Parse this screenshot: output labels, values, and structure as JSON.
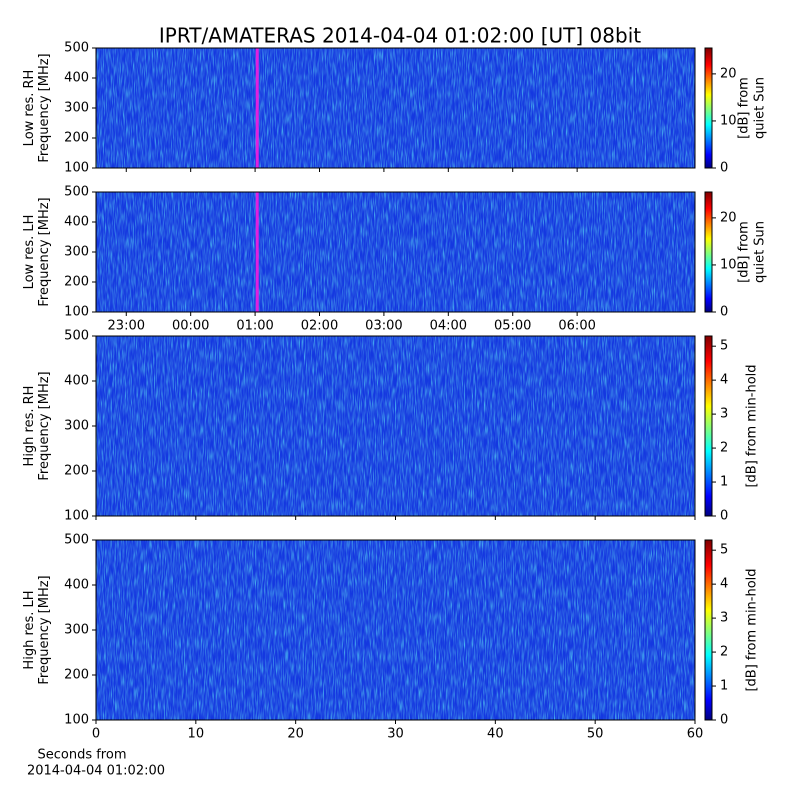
{
  "title": "IPRT/AMATERAS 2014-04-04 01:02:00 [UT]   08bit",
  "chart_data": [
    {
      "type": "heatmap",
      "ylabel": [
        "Low res. RH",
        "Frequency [MHz]"
      ],
      "ylim": [
        100,
        500
      ],
      "yticks": [
        100,
        200,
        300,
        400,
        500
      ],
      "xlim": [
        -1.47,
        7.83
      ],
      "xticklabels": false,
      "xticks": [
        {
          "value": -1,
          "label": "23:00"
        },
        {
          "value": 0,
          "label": "00:00"
        },
        {
          "value": 1,
          "label": "01:00"
        },
        {
          "value": 2,
          "label": "02:00"
        },
        {
          "value": 3,
          "label": "03:00"
        },
        {
          "value": 4,
          "label": "04:00"
        },
        {
          "value": 5,
          "label": "05:00"
        },
        {
          "value": 6,
          "label": "06:00"
        }
      ],
      "marker_x": 1.033,
      "marker_color": "#e020e0",
      "clim": [
        0,
        25.5
      ],
      "cticks": [
        0,
        10,
        20
      ],
      "clabel": [
        "[dB] from",
        "quiet Sun"
      ]
    },
    {
      "type": "heatmap",
      "ylabel": [
        "Low res. LH",
        "Frequency [MHz]"
      ],
      "ylim": [
        100,
        500
      ],
      "yticks": [
        100,
        200,
        300,
        400,
        500
      ],
      "xlim": [
        -1.47,
        7.83
      ],
      "xticklabels": true,
      "xticks": [
        {
          "value": -1,
          "label": "23:00"
        },
        {
          "value": 0,
          "label": "00:00"
        },
        {
          "value": 1,
          "label": "01:00"
        },
        {
          "value": 2,
          "label": "02:00"
        },
        {
          "value": 3,
          "label": "03:00"
        },
        {
          "value": 4,
          "label": "04:00"
        },
        {
          "value": 5,
          "label": "05:00"
        },
        {
          "value": 6,
          "label": "06:00"
        }
      ],
      "marker_x": 1.033,
      "marker_color": "#e020e0",
      "clim": [
        0,
        25.5
      ],
      "cticks": [
        0,
        10,
        20
      ],
      "clabel": [
        "[dB] from",
        "quiet Sun"
      ]
    },
    {
      "type": "heatmap",
      "ylabel": [
        "High res. RH",
        "Frequency [MHz]"
      ],
      "ylim": [
        100,
        500
      ],
      "yticks": [
        100,
        200,
        300,
        400,
        500
      ],
      "xlim": [
        0,
        60
      ],
      "xticks": [
        0,
        10,
        20,
        30,
        40,
        50,
        60
      ],
      "xticklabels": false,
      "clim": [
        0,
        5.3
      ],
      "cticks": [
        0,
        1,
        2,
        3,
        4,
        5
      ],
      "clabel": [
        "[dB] from min-hold"
      ]
    },
    {
      "type": "heatmap",
      "ylabel": [
        "High res. LH",
        "Frequency [MHz]"
      ],
      "ylim": [
        100,
        500
      ],
      "yticks": [
        100,
        200,
        300,
        400,
        500
      ],
      "xlim": [
        0,
        60
      ],
      "xticks": [
        0,
        10,
        20,
        30,
        40,
        50,
        60
      ],
      "xticklabels": true,
      "xlabel": [
        "Seconds from",
        "2014-04-04 01:02:00"
      ],
      "clim": [
        0,
        5.3
      ],
      "cticks": [
        0,
        1,
        2,
        3,
        4,
        5
      ],
      "clabel": [
        "[dB] from min-hold"
      ]
    }
  ]
}
